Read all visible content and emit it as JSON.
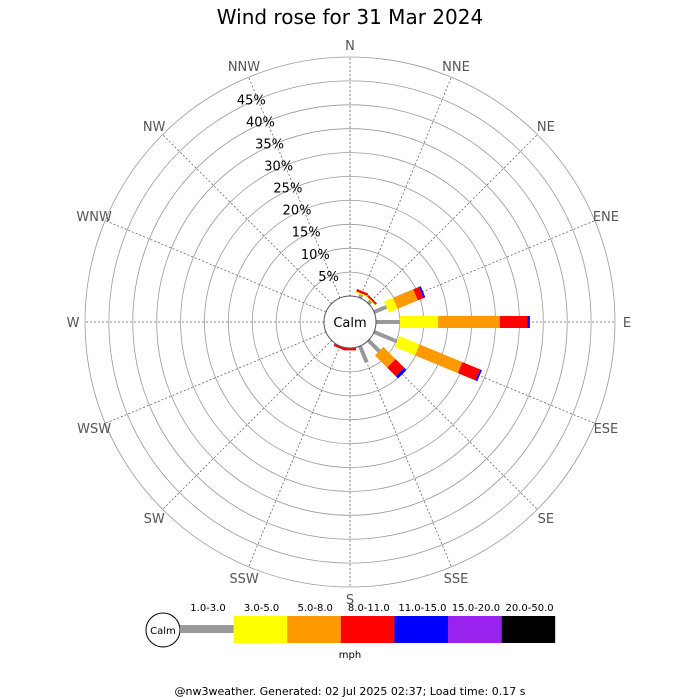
{
  "chart_data": {
    "type": "wind-rose",
    "title": "Wind rose for 31 Mar 2024",
    "center_label": "Calm",
    "radial_ticks": [
      "5%",
      "10%",
      "15%",
      "20%",
      "25%",
      "30%",
      "35%",
      "40%",
      "45%"
    ],
    "radial_max": 50,
    "directions": [
      "N",
      "NNE",
      "NE",
      "ENE",
      "E",
      "ESE",
      "SE",
      "SSE",
      "S",
      "SSW",
      "SW",
      "WSW",
      "W",
      "WNW",
      "NW",
      "NNW"
    ],
    "speed_bins": [
      {
        "label": "1.0-3.0",
        "color": "#999999"
      },
      {
        "label": "3.0-5.0",
        "color": "#ffff00"
      },
      {
        "label": "5.0-8.0",
        "color": "#ff9900"
      },
      {
        "label": "8.0-11.0",
        "color": "#ff0000"
      },
      {
        "label": "11.0-15.0",
        "color": "#0000ff"
      },
      {
        "label": "15.0-20.0",
        "color": "#9922ee"
      },
      {
        "label": "20.0-50.0",
        "color": "#000000"
      }
    ],
    "unit_label": "mph",
    "series": [
      {
        "direction": "NNE",
        "values": [
          0.7,
          0.3,
          0,
          0.5,
          0,
          0,
          0
        ]
      },
      {
        "direction": "NE",
        "values": [
          0.7,
          0.2,
          0,
          0.4,
          0,
          0,
          0
        ]
      },
      {
        "direction": "ENE",
        "values": [
          2.8,
          2.0,
          4.6,
          1.3,
          0.4,
          0,
          0
        ]
      },
      {
        "direction": "E",
        "values": [
          5.0,
          8.0,
          12.9,
          5.8,
          0.5,
          0,
          0
        ]
      },
      {
        "direction": "ESE",
        "values": [
          5.2,
          4.6,
          9.7,
          4.0,
          0.4,
          0,
          0
        ]
      },
      {
        "direction": "SE",
        "values": [
          3.2,
          0,
          3.6,
          2.6,
          0.6,
          0,
          0
        ]
      },
      {
        "direction": "SSE",
        "values": [
          3.7,
          0,
          0,
          0,
          0,
          0,
          0
        ]
      },
      {
        "direction": "S",
        "values": [
          0,
          0,
          0,
          0.5,
          0,
          0,
          0
        ]
      },
      {
        "direction": "SSW",
        "values": [
          0,
          0,
          0,
          0.5,
          0,
          0,
          0
        ]
      }
    ]
  },
  "footer": "@nw3weather. Generated: 02 Jul 2025 02:37; Load time: 0.17 s"
}
